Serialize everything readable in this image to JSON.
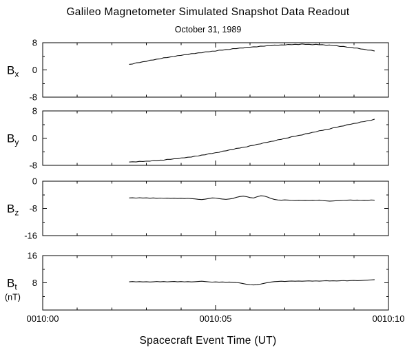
{
  "chart_data": {
    "type": "line",
    "title": "Galileo Magnetometer Simulated Snapshot Data Readout",
    "subtitle": "October 31, 1989",
    "xlabel": "Spacecraft Event Time (UT)",
    "x_unit": "minutes after 0010:00 UT",
    "grid": false,
    "legend": "none",
    "x_axis": {
      "range_minutes": [
        0,
        10
      ],
      "major_ticks": [
        0,
        5,
        10
      ],
      "minor_tick_step": 1,
      "tick_labels": [
        "0010:00",
        "0010:05",
        "0010:10"
      ]
    },
    "x": [
      2.5,
      2.6,
      2.7,
      2.8,
      2.9,
      3.0,
      3.1,
      3.2,
      3.3,
      3.4,
      3.5,
      3.6,
      3.7,
      3.8,
      3.9,
      4.0,
      4.1,
      4.2,
      4.3,
      4.4,
      4.5,
      4.6,
      4.7,
      4.8,
      4.9,
      5.0,
      5.1,
      5.2,
      5.3,
      5.4,
      5.5,
      5.6,
      5.7,
      5.8,
      5.9,
      6.0,
      6.1,
      6.2,
      6.3,
      6.4,
      6.5,
      6.6,
      6.7,
      6.8,
      6.9,
      7.0,
      7.1,
      7.2,
      7.3,
      7.4,
      7.5,
      7.6,
      7.7,
      7.8,
      7.9,
      8.0,
      8.1,
      8.2,
      8.3,
      8.4,
      8.5,
      8.6,
      8.7,
      8.8,
      8.9,
      9.0,
      9.1,
      9.2,
      9.3,
      9.4,
      9.5,
      9.6
    ],
    "panels": [
      {
        "name": "Bx",
        "label_main": "B",
        "label_sub": "x",
        "ylim": [
          -8,
          8
        ],
        "yticks": [
          8,
          0,
          -8
        ],
        "values": [
          1.64,
          1.74,
          2.08,
          2.17,
          2.42,
          2.52,
          2.84,
          2.92,
          3.18,
          3.26,
          3.58,
          3.63,
          3.84,
          3.9,
          4.2,
          4.26,
          4.48,
          4.52,
          4.8,
          4.83,
          5.02,
          5.04,
          5.3,
          5.32,
          5.52,
          5.54,
          5.8,
          5.81,
          5.98,
          6.0,
          6.26,
          6.26,
          6.44,
          6.44,
          6.68,
          6.67,
          6.8,
          6.78,
          7.0,
          6.98,
          7.14,
          7.1,
          7.3,
          7.25,
          7.36,
          7.32,
          7.49,
          7.42,
          7.53,
          7.46,
          7.63,
          7.5,
          7.53,
          7.41,
          7.53,
          7.41,
          7.42,
          7.25,
          7.32,
          7.14,
          7.12,
          6.9,
          6.92,
          6.7,
          6.66,
          6.44,
          6.43,
          6.17,
          6.07,
          5.82,
          5.81,
          5.56
        ]
      },
      {
        "name": "By",
        "label_main": "B",
        "label_sub": "y",
        "ylim": [
          -8,
          8
        ],
        "yticks": [
          8,
          0,
          -8
        ],
        "values": [
          -7.03,
          -6.94,
          -7.0,
          -6.82,
          -6.88,
          -6.76,
          -6.78,
          -6.56,
          -6.59,
          -6.46,
          -6.48,
          -6.24,
          -6.24,
          -6.06,
          -6.06,
          -5.82,
          -5.79,
          -5.6,
          -5.56,
          -5.28,
          -5.24,
          -4.98,
          -4.9,
          -4.58,
          -4.51,
          -4.28,
          -4.18,
          -3.84,
          -3.74,
          -3.46,
          -3.36,
          -3.02,
          -2.93,
          -2.68,
          -2.58,
          -2.24,
          -2.12,
          -1.82,
          -1.7,
          -1.34,
          -1.23,
          -0.96,
          -0.84,
          -0.48,
          -0.36,
          -0.06,
          0.06,
          0.42,
          0.53,
          0.8,
          0.92,
          1.28,
          1.4,
          1.7,
          1.82,
          2.18,
          2.29,
          2.56,
          2.68,
          3.04,
          3.16,
          3.46,
          3.58,
          3.94,
          4.05,
          4.32,
          4.42,
          4.76,
          4.86,
          5.14,
          5.24,
          5.58
        ]
      },
      {
        "name": "Bz",
        "label_main": "B",
        "label_sub": "z",
        "ylim": [
          -16,
          0
        ],
        "yticks": [
          0,
          -8,
          -16
        ],
        "values": [
          -4.92,
          -4.88,
          -4.96,
          -4.86,
          -4.94,
          -4.9,
          -5.0,
          -4.92,
          -5.02,
          -4.96,
          -5.04,
          -4.98,
          -5.06,
          -5.0,
          -5.08,
          -5.02,
          -5.1,
          -5.04,
          -5.12,
          -5.2,
          -5.32,
          -5.4,
          -5.28,
          -5.1,
          -4.92,
          -4.96,
          -5.12,
          -5.26,
          -5.34,
          -5.22,
          -5.08,
          -4.76,
          -4.52,
          -4.4,
          -4.56,
          -4.82,
          -4.94,
          -4.58,
          -4.3,
          -4.36,
          -4.66,
          -5.06,
          -5.36,
          -5.52,
          -5.58,
          -5.5,
          -5.56,
          -5.62,
          -5.66,
          -5.58,
          -5.64,
          -5.6,
          -5.66,
          -5.58,
          -5.62,
          -5.56,
          -5.7,
          -5.78,
          -5.86,
          -5.8,
          -5.74,
          -5.68,
          -5.62,
          -5.58,
          -5.54,
          -5.6,
          -5.56,
          -5.62,
          -5.58,
          -5.64,
          -5.52,
          -5.58
        ]
      },
      {
        "name": "Bt",
        "label_main": "B",
        "label_sub": "t",
        "label_unit": "(nT)",
        "ylim": [
          0,
          16
        ],
        "yticks": [
          16,
          8
        ],
        "values": [
          8.3,
          8.36,
          8.28,
          8.34,
          8.26,
          8.32,
          8.24,
          8.3,
          8.38,
          8.3,
          8.36,
          8.28,
          8.34,
          8.4,
          8.3,
          8.36,
          8.28,
          8.34,
          8.26,
          8.32,
          8.4,
          8.46,
          8.36,
          8.28,
          8.2,
          8.26,
          8.18,
          8.24,
          8.16,
          8.22,
          8.14,
          8.08,
          7.96,
          7.76,
          7.56,
          7.44,
          7.38,
          7.46,
          7.62,
          7.84,
          8.06,
          8.22,
          8.34,
          8.4,
          8.46,
          8.4,
          8.46,
          8.52,
          8.46,
          8.52,
          8.46,
          8.52,
          8.58,
          8.5,
          8.56,
          8.5,
          8.56,
          8.62,
          8.54,
          8.6,
          8.54,
          8.6,
          8.66,
          8.58,
          8.64,
          8.7,
          8.62,
          8.68,
          8.74,
          8.8,
          8.86,
          8.92
        ]
      }
    ]
  },
  "colors": {
    "foreground": "#000000",
    "background": "#ffffff",
    "trace": "#111111"
  }
}
